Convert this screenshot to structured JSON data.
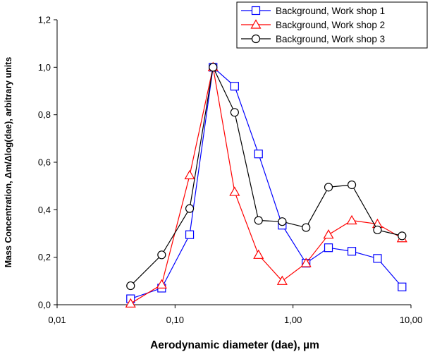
{
  "chart_data": {
    "type": "line",
    "x_scale": "log",
    "xlabel": "Aerodynamic diameter (dae), µm",
    "ylabel": "Mass Concentration,  Δm/Δlog(dae), arbitrary units",
    "xlim": [
      0.01,
      10
    ],
    "ylim": [
      0,
      1.2
    ],
    "xticks": [
      0.01,
      0.1,
      1,
      10
    ],
    "xtick_labels": [
      "0,01",
      "0,10",
      "1,00",
      "10,00"
    ],
    "yticks": [
      0,
      0.2,
      0.4,
      0.6,
      0.8,
      1.0,
      1.2
    ],
    "ytick_labels": [
      "0,0",
      "0,2",
      "0,4",
      "0,6",
      "0,8",
      "1,0",
      "1,2"
    ],
    "grid": false,
    "legend_position": "top-right",
    "series": [
      {
        "name": "Background, Work shop 1",
        "color": "#0000ff",
        "marker": "square",
        "x": [
          0.042,
          0.077,
          0.133,
          0.21,
          0.32,
          0.51,
          0.81,
          1.29,
          2.0,
          3.15,
          5.2,
          8.4
        ],
        "y": [
          0.025,
          0.07,
          0.295,
          1.0,
          0.92,
          0.635,
          0.335,
          0.175,
          0.24,
          0.225,
          0.195,
          0.075
        ]
      },
      {
        "name": "Background, Work shop 2",
        "color": "#ff0000",
        "marker": "triangle",
        "x": [
          0.042,
          0.077,
          0.133,
          0.21,
          0.32,
          0.51,
          0.81,
          1.29,
          2.0,
          3.15,
          5.2,
          8.4
        ],
        "y": [
          0.005,
          0.085,
          0.545,
          1.0,
          0.475,
          0.21,
          0.1,
          0.175,
          0.295,
          0.355,
          0.34,
          0.28
        ]
      },
      {
        "name": "Background, Work shop 3",
        "color": "#000000",
        "marker": "circle",
        "x": [
          0.042,
          0.077,
          0.133,
          0.21,
          0.32,
          0.51,
          0.81,
          1.29,
          2.0,
          3.15,
          5.2,
          8.4
        ],
        "y": [
          0.08,
          0.21,
          0.405,
          1.0,
          0.81,
          0.355,
          0.35,
          0.325,
          0.495,
          0.505,
          0.315,
          0.29
        ]
      }
    ]
  }
}
